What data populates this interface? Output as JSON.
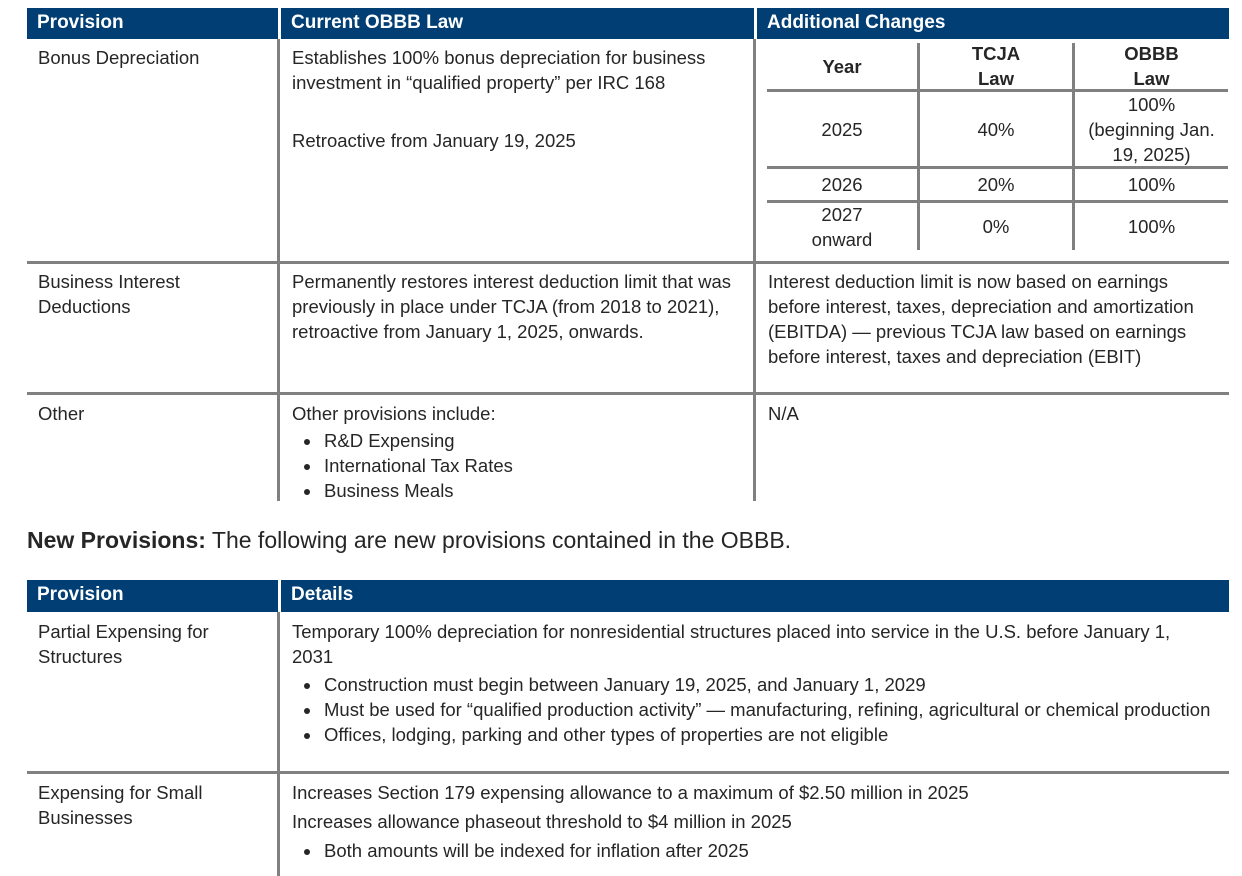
{
  "table1": {
    "headers": [
      "Provision",
      "Current OBBB Law",
      "Additional Changes"
    ],
    "rows": [
      {
        "provision": "Bonus Depreciation",
        "law": "Establishes 100% bonus depreciation for business investment in “qualified property” per IRC 168",
        "law2": "Retroactive from January 19, 2025"
      },
      {
        "provision": "Business Interest Deductions",
        "law": "Permanently restores interest deduction limit that was previously in place under TCJA (from 2018 to 2021), retroactive from January 1, 2025, onwards.",
        "changes": "Interest deduction limit is now based on earnings before interest, taxes, depreciation and amortization (EBITDA) — previous TCJA law based on earnings before interest, taxes and depreciation (EBIT)"
      },
      {
        "provision": "Other",
        "law": "Other provisions include:",
        "bullets": [
          "R&D Expensing",
          "International Tax Rates",
          "Business Meals"
        ],
        "changes": "N/A"
      }
    ],
    "inner_table": {
      "headers": [
        "Year",
        "TCJA Law",
        "OBBB Law"
      ],
      "rows": [
        [
          "2025",
          "40%",
          "100% (beginning Jan. 19, 2025)"
        ],
        [
          "2026",
          "20%",
          "100%"
        ],
        [
          "2027 onward",
          "0%",
          "100%"
        ]
      ]
    }
  },
  "heading": {
    "bold": "New Provisions:",
    "text": " The following are new provisions contained in the OBBB."
  },
  "table2": {
    "headers": [
      "Provision",
      "Details"
    ],
    "rows": [
      {
        "provision": "Partial Expensing for Structures",
        "lines": [
          "Temporary 100% depreciation for nonresidential structures placed into service in the U.S. before January 1, 2031"
        ],
        "bullets": [
          "Construction must begin between January 19, 2025, and January 1, 2029",
          "Must be used for “qualified production activity” — manufacturing, refining, agricultural or chemical production",
          "Offices, lodging, parking and other types of properties are not eligible"
        ]
      },
      {
        "provision": "Expensing for Small Businesses",
        "lines": [
          "Increases Section 179 expensing allowance to a maximum of $2.50 million in 2025",
          "Increases allowance phaseout threshold to $4 million in 2025"
        ],
        "bullets": [
          "Both amounts will be indexed for inflation after 2025"
        ]
      }
    ]
  },
  "colors": {
    "header": "#003e74",
    "rule": "#808080"
  }
}
